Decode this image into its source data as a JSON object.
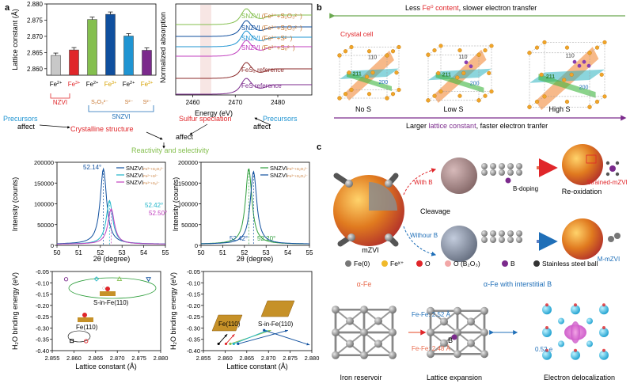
{
  "panel_labels": {
    "a": "a",
    "b": "b",
    "c": "c"
  },
  "panel_a": {
    "lattice_bar": {
      "ylabel": "Lattice constant (Å)",
      "yticks": [
        "2.880",
        "2.875",
        "2.870",
        "2.865",
        "2.860"
      ],
      "bars": [
        {
          "label": "Fe",
          "sup": "2+",
          "value": 2.8641,
          "color": "#c8c8c8",
          "label_color": "#000000"
        },
        {
          "label": "Fe",
          "sup": "3+",
          "value": 2.8658,
          "color": "#e0262a",
          "label_color": "#e0262a"
        },
        {
          "label": "Fe",
          "sup": "2+",
          "value": 2.8752,
          "color": "#84bf4e",
          "label_color": "#000000"
        },
        {
          "label": "Fe",
          "sup": "3+",
          "value": 2.8768,
          "color": "#0f4f9e",
          "label_color": "#d6a100"
        },
        {
          "label": "Fe",
          "sup": "2+",
          "value": 2.8701,
          "color": "#1f94d2",
          "label_color": "#000000"
        },
        {
          "label": "Fe",
          "sup": "3+",
          "value": 2.8657,
          "color": "#7b2a8c",
          "label_color": "#d6a100"
        }
      ],
      "group1": "NZVI",
      "group2": "SNZVI",
      "sub1": "S₂O₃²⁻",
      "sub2": "S²⁻",
      "sub3": "S²⁻"
    },
    "xas": {
      "ylabel": "Normalized absorption",
      "xlabel": "Energy (eV)",
      "xticks": [
        "2460",
        "2470",
        "2480"
      ],
      "legend": [
        {
          "prefix": "SNZVI",
          "detail": "(Fe²⁺+S₂O₃²⁻)",
          "color": "#84bf4e"
        },
        {
          "prefix": "SNZVI",
          "detail": "(Fe³⁺+S₂O₃²⁻)",
          "color": "#0f4f9e"
        },
        {
          "prefix": "SNZVI",
          "detail": "(Fe²⁺+S²⁻)",
          "color": "#1f94d2"
        },
        {
          "prefix": "SNZVI",
          "detail": "(Fe³⁺+S₈²⁻)",
          "color": "#c13fbf"
        },
        {
          "prefix": "FeS₂ reference",
          "detail": "",
          "color": "#8b2a2a"
        },
        {
          "prefix": "FeS reference",
          "detail": "",
          "color": "#7b2a8c"
        }
      ]
    },
    "flow": {
      "precursors_left": "Precursors",
      "affect_left": "affect",
      "crystalline": "Crystalline structure",
      "precursors_right": "Precursors",
      "affect_right": "affect",
      "sulfur": "Sulfur speciation",
      "affect_center": "affect",
      "reactivity": "Reactivity and selectivity"
    },
    "xrd_left": {
      "ylabel": "Intensity (counts)",
      "xlabel": "2θ (degree)",
      "yticks": [
        "200000",
        "150000",
        "100000",
        "50000",
        "0"
      ],
      "xticks": [
        "50",
        "51",
        "52",
        "53",
        "54",
        "55"
      ],
      "peaks": [
        {
          "center": 52.14,
          "height": 181000,
          "label": "52.14°",
          "color": "#0f4f9e",
          "legend": "SNZVI",
          "legend_sub": "Fe³⁺+S₂O₃²⁻"
        },
        {
          "center": 52.42,
          "height": 105000,
          "label": "52.42°",
          "color": "#1fb5c8",
          "legend": "SNZVI",
          "legend_sub": "Fe²⁺+S²⁻"
        },
        {
          "center": 52.5,
          "height": 85000,
          "label": "52.50°",
          "color": "#c13fbf",
          "legend": "SNZVI",
          "legend_sub": "Fe³⁺+S₈²⁻"
        }
      ]
    },
    "xrd_right": {
      "ylabel": "Intensity (counts)",
      "xlabel": "2θ (degree)",
      "yticks": [
        "200000",
        "150000",
        "100000",
        "50000",
        "0"
      ],
      "xticks": [
        "50",
        "51",
        "52",
        "53",
        "54",
        "55"
      ],
      "peaks": [
        {
          "center": 52.2,
          "height": 182000,
          "label": "52.20°",
          "color": "#2e9e3c",
          "legend": "SNZVI",
          "legend_sub": "Fe²⁺+S₂O₃²⁻"
        },
        {
          "center": 52.42,
          "height": 175000,
          "label": "52.42°",
          "color": "#0f4f9e",
          "legend": "SNZVI",
          "legend_sub": "Fe³⁺+S₂O₃²⁻"
        }
      ]
    },
    "binding_left": {
      "ylabel": "H₂O binding energy (eV)",
      "xlabel": "Lattice constant (Å)",
      "yticks": [
        "-0.05",
        "-0.10",
        "-0.15",
        "-0.20",
        "-0.25",
        "-0.30",
        "-0.35",
        "-0.40"
      ],
      "xticks": [
        "2.855",
        "2.860",
        "2.865",
        "2.870",
        "2.875",
        "2.880"
      ],
      "label_sin": "S-in-Fe(110)",
      "label_fe": "Fe(110)",
      "points": [
        {
          "x": 2.8582,
          "y": -0.084,
          "color": "#7b2a8c",
          "shape": "circle"
        },
        {
          "x": 2.8652,
          "y": -0.083,
          "color": "#1fb5c8",
          "shape": "diamond"
        },
        {
          "x": 2.8705,
          "y": -0.083,
          "color": "#84bf4e",
          "shape": "triangle"
        },
        {
          "x": 2.8772,
          "y": -0.084,
          "color": "#0f4f9e",
          "shape": "tridown"
        },
        {
          "x": 2.8595,
          "y": -0.357,
          "color": "#000000",
          "shape": "square"
        },
        {
          "x": 2.8628,
          "y": -0.358,
          "color": "#e0262a",
          "shape": "circle"
        }
      ]
    },
    "binding_right": {
      "ylabel": "H₂O binding energy (eV)",
      "xlabel": "Lattice constant (Å)",
      "yticks": [
        "-0.05",
        "-0.10",
        "-0.15",
        "-0.20",
        "-0.25",
        "-0.30",
        "-0.35",
        "-0.40"
      ],
      "xticks": [
        "2.855",
        "2.860",
        "2.865",
        "2.870",
        "2.875",
        "2.880"
      ],
      "label_fe": "Fe(110)",
      "label_sin": "S-in-Fe(110)",
      "arrows": [
        {
          "x1": 2.8585,
          "y1": -0.37,
          "x2": 2.8605,
          "y2": -0.327,
          "color": "#000000"
        },
        {
          "x1": 2.8602,
          "y1": -0.37,
          "x2": 2.8622,
          "y2": -0.327,
          "color": "#e0262a"
        },
        {
          "x1": 2.8612,
          "y1": -0.37,
          "x2": 2.8706,
          "y2": -0.31,
          "color": "#84bf4e"
        },
        {
          "x1": 2.862,
          "y1": -0.37,
          "x2": 2.8698,
          "y2": -0.31,
          "color": "#1fb5c8"
        },
        {
          "x1": 2.863,
          "y1": -0.37,
          "x2": 2.8745,
          "y2": -0.31,
          "color": "#0f4f9e"
        },
        {
          "x1": 2.869,
          "y1": -0.31,
          "x2": 2.8795,
          "y2": -0.375,
          "color": "#0f4f9e"
        }
      ]
    }
  },
  "panel_b": {
    "top_text_pre": "Less ",
    "top_text_hl": "Fe⁰ content",
    "top_text_post": ", slower electron transfer",
    "crystal_cell": "Crystal cell",
    "labels": {
      "p110": "110",
      "p211": "211",
      "p200": "200"
    },
    "captions": [
      "No S",
      "Low S",
      "High S"
    ],
    "bottom_text_pre": "Larger ",
    "bottom_text_hl": "lattice constant",
    "bottom_text_post": ", faster electron tranfer"
  },
  "panel_c": {
    "mzvi": "mZVI",
    "with_b": "With B",
    "without_b": "Withour B",
    "cleavage": "Cleavage",
    "b_doping": "B-doping",
    "reoxidation": "Re-oxidation",
    "strained": "Strained-mZVI",
    "m_mzvi": "M-mZVI",
    "legend": [
      {
        "symbol": "Fe(0)",
        "color": "#777777"
      },
      {
        "symbol": "Feˣ⁺",
        "color": "#f0b92a"
      },
      {
        "symbol": "O",
        "color": "#e0262a"
      },
      {
        "symbol": "O (B₂O₃)",
        "color": "#f2a7a7"
      },
      {
        "symbol": "B",
        "color": "#7b2a8c"
      },
      {
        "symbol": "Stainless steel ball",
        "color": "#333333"
      }
    ],
    "alpha_fe": "α-Fe",
    "alpha_fe_b": "α-Fe with interstitial B",
    "fefe1": "Fe-Fe: 2.52 Å",
    "fefe2": "Fe-Fe: 2.48 Å",
    "b_label": "B",
    "charge": "0.52 e",
    "iron_reservoir": "Iron reservoir",
    "lattice_expansion": "Lattice expansion",
    "electron_delocalization": "Electron delocalization"
  }
}
